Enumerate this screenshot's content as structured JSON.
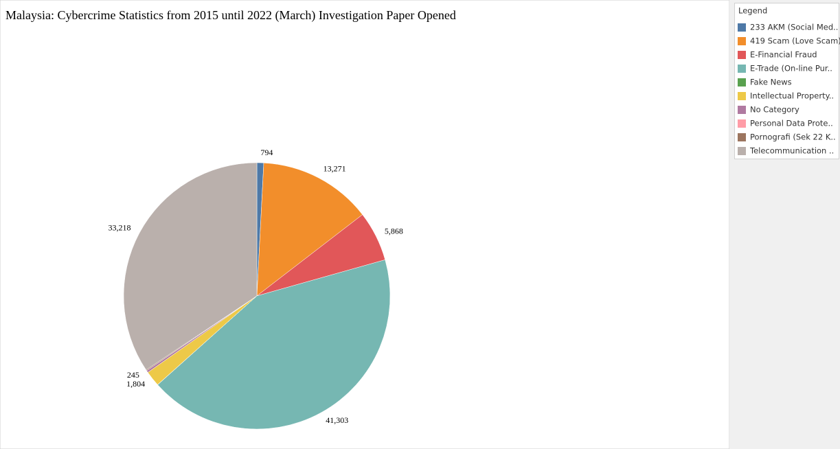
{
  "chart_data": {
    "type": "pie",
    "title": "Malaysia: Cybercrime Statistics from 2015 until 2022 (March) Investigation Paper Opened",
    "legend_title": "Legend",
    "categories": [
      "233 AKM (Social Med..",
      "419 Scam (Love Scam)",
      "E-Financial Fraud",
      "E-Trade (On-line Pur..",
      "Fake News",
      "Intellectual Property..",
      "No Category",
      "Personal Data Prote..",
      "Pornografi (Sek 22 K..",
      "Telecommunication .."
    ],
    "values": [
      794,
      13271,
      5868,
      41303,
      20,
      1804,
      245,
      10,
      100,
      33218
    ],
    "value_labels": [
      "794",
      "13,271",
      "5,868",
      "41,303",
      null,
      "1,804",
      "245",
      null,
      null,
      "33,218"
    ],
    "colors": [
      "#4e79a7",
      "#f28e2b",
      "#e15759",
      "#76b7b2",
      "#59a14f",
      "#edc948",
      "#b07aa1",
      "#ff9da7",
      "#9c755f",
      "#bab0ac"
    ]
  }
}
